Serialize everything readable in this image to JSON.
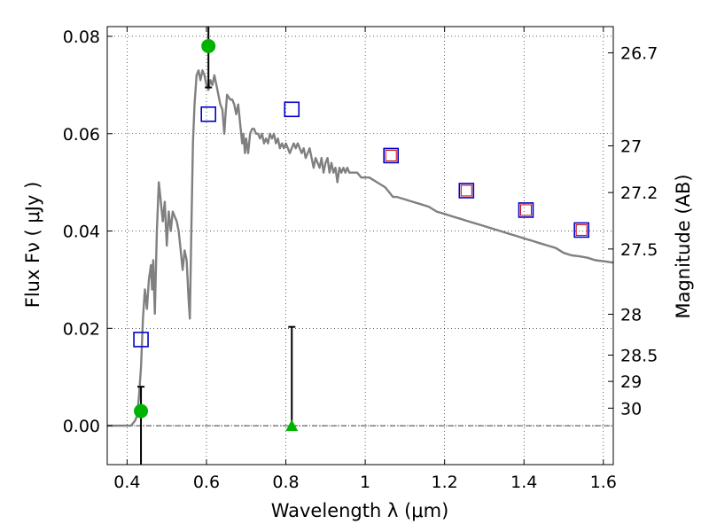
{
  "chart_data": {
    "type": "scatter",
    "xlabel": "Wavelength  λ (μm)",
    "ylabel": "Flux  Fν ( μJy )",
    "y2label": "Magnitude (AB)",
    "xlim": [
      0.35,
      1.625
    ],
    "ylim": [
      -0.008,
      0.082
    ],
    "grid": true,
    "x_ticks": [
      {
        "value": 0.4,
        "label": "0.4"
      },
      {
        "value": 0.6,
        "label": "0.6"
      },
      {
        "value": 0.8,
        "label": "0.8"
      },
      {
        "value": 1.0,
        "label": "1"
      },
      {
        "value": 1.2,
        "label": "1.2"
      },
      {
        "value": 1.4,
        "label": "1.4"
      },
      {
        "value": 1.6,
        "label": "1.6"
      }
    ],
    "y_ticks": [
      {
        "value": 0.0,
        "label": "0.00"
      },
      {
        "value": 0.02,
        "label": "0.02"
      },
      {
        "value": 0.04,
        "label": "0.04"
      },
      {
        "value": 0.06,
        "label": "0.06"
      },
      {
        "value": 0.08,
        "label": "0.08"
      }
    ],
    "mag_ticks": [
      {
        "label": "26.7",
        "flux": 0.0766
      },
      {
        "label": "27",
        "flux": 0.0575
      },
      {
        "label": "27.2",
        "flux": 0.0479
      },
      {
        "label": "27.5",
        "flux": 0.0363
      },
      {
        "label": "28",
        "flux": 0.0229
      },
      {
        "label": "28.5",
        "flux": 0.0145
      },
      {
        "label": "29",
        "flux": 0.0091
      },
      {
        "label": "30",
        "flux": 0.0036
      }
    ],
    "model_sed": {
      "color": "#808080",
      "points": [
        [
          0.35,
          0.0
        ],
        [
          0.41,
          0.0
        ],
        [
          0.415,
          0.0005
        ],
        [
          0.42,
          0.001
        ],
        [
          0.425,
          0.002
        ],
        [
          0.43,
          0.006
        ],
        [
          0.435,
          0.012
        ],
        [
          0.44,
          0.022
        ],
        [
          0.445,
          0.028
        ],
        [
          0.45,
          0.024
        ],
        [
          0.455,
          0.03
        ],
        [
          0.46,
          0.033
        ],
        [
          0.463,
          0.028
        ],
        [
          0.466,
          0.034
        ],
        [
          0.47,
          0.023
        ],
        [
          0.475,
          0.04
        ],
        [
          0.48,
          0.05
        ],
        [
          0.485,
          0.046
        ],
        [
          0.49,
          0.042
        ],
        [
          0.495,
          0.046
        ],
        [
          0.5,
          0.037
        ],
        [
          0.505,
          0.044
        ],
        [
          0.51,
          0.04
        ],
        [
          0.515,
          0.044
        ],
        [
          0.52,
          0.043
        ],
        [
          0.525,
          0.042
        ],
        [
          0.53,
          0.04
        ],
        [
          0.535,
          0.036
        ],
        [
          0.54,
          0.032
        ],
        [
          0.545,
          0.036
        ],
        [
          0.55,
          0.034
        ],
        [
          0.555,
          0.026
        ],
        [
          0.558,
          0.022
        ],
        [
          0.562,
          0.04
        ],
        [
          0.566,
          0.058
        ],
        [
          0.57,
          0.066
        ],
        [
          0.575,
          0.072
        ],
        [
          0.58,
          0.073
        ],
        [
          0.585,
          0.071
        ],
        [
          0.59,
          0.073
        ],
        [
          0.595,
          0.072
        ],
        [
          0.6,
          0.07
        ],
        [
          0.605,
          0.069
        ],
        [
          0.61,
          0.071
        ],
        [
          0.615,
          0.07
        ],
        [
          0.62,
          0.072
        ],
        [
          0.625,
          0.07
        ],
        [
          0.63,
          0.068
        ],
        [
          0.635,
          0.066
        ],
        [
          0.64,
          0.065
        ],
        [
          0.645,
          0.06
        ],
        [
          0.648,
          0.064
        ],
        [
          0.652,
          0.068
        ],
        [
          0.66,
          0.067
        ],
        [
          0.665,
          0.067
        ],
        [
          0.67,
          0.066
        ],
        [
          0.675,
          0.064
        ],
        [
          0.68,
          0.066
        ],
        [
          0.685,
          0.062
        ],
        [
          0.69,
          0.058
        ],
        [
          0.693,
          0.06
        ],
        [
          0.697,
          0.056
        ],
        [
          0.7,
          0.059
        ],
        [
          0.705,
          0.056
        ],
        [
          0.71,
          0.06
        ],
        [
          0.715,
          0.061
        ],
        [
          0.72,
          0.061
        ],
        [
          0.725,
          0.06
        ],
        [
          0.73,
          0.06
        ],
        [
          0.735,
          0.059
        ],
        [
          0.74,
          0.06
        ],
        [
          0.745,
          0.058
        ],
        [
          0.75,
          0.059
        ],
        [
          0.755,
          0.058
        ],
        [
          0.76,
          0.06
        ],
        [
          0.765,
          0.059
        ],
        [
          0.77,
          0.06
        ],
        [
          0.775,
          0.058
        ],
        [
          0.78,
          0.059
        ],
        [
          0.785,
          0.057
        ],
        [
          0.79,
          0.058
        ],
        [
          0.795,
          0.057
        ],
        [
          0.8,
          0.058
        ],
        [
          0.805,
          0.057
        ],
        [
          0.81,
          0.056
        ],
        [
          0.815,
          0.057
        ],
        [
          0.82,
          0.058
        ],
        [
          0.825,
          0.057
        ],
        [
          0.83,
          0.058
        ],
        [
          0.835,
          0.057
        ],
        [
          0.84,
          0.056
        ],
        [
          0.845,
          0.057
        ],
        [
          0.85,
          0.055
        ],
        [
          0.855,
          0.056
        ],
        [
          0.86,
          0.057
        ],
        [
          0.865,
          0.055
        ],
        [
          0.87,
          0.053
        ],
        [
          0.875,
          0.055
        ],
        [
          0.88,
          0.054
        ],
        [
          0.885,
          0.053
        ],
        [
          0.89,
          0.055
        ],
        [
          0.895,
          0.052
        ],
        [
          0.9,
          0.054
        ],
        [
          0.905,
          0.055
        ],
        [
          0.91,
          0.052
        ],
        [
          0.915,
          0.054
        ],
        [
          0.92,
          0.052
        ],
        [
          0.925,
          0.053
        ],
        [
          0.93,
          0.05
        ],
        [
          0.935,
          0.053
        ],
        [
          0.94,
          0.052
        ],
        [
          0.945,
          0.053
        ],
        [
          0.95,
          0.052
        ],
        [
          0.955,
          0.053
        ],
        [
          0.96,
          0.052
        ],
        [
          0.97,
          0.052
        ],
        [
          0.98,
          0.052
        ],
        [
          0.99,
          0.051
        ],
        [
          1.0,
          0.051
        ],
        [
          1.01,
          0.051
        ],
        [
          1.03,
          0.05
        ],
        [
          1.05,
          0.049
        ],
        [
          1.06,
          0.048
        ],
        [
          1.07,
          0.047
        ],
        [
          1.08,
          0.047
        ],
        [
          1.1,
          0.0465
        ],
        [
          1.12,
          0.046
        ],
        [
          1.14,
          0.0455
        ],
        [
          1.16,
          0.045
        ],
        [
          1.18,
          0.044
        ],
        [
          1.2,
          0.0435
        ],
        [
          1.22,
          0.043
        ],
        [
          1.24,
          0.0425
        ],
        [
          1.26,
          0.042
        ],
        [
          1.28,
          0.0415
        ],
        [
          1.3,
          0.041
        ],
        [
          1.32,
          0.0405
        ],
        [
          1.34,
          0.04
        ],
        [
          1.36,
          0.0395
        ],
        [
          1.38,
          0.039
        ],
        [
          1.4,
          0.0385
        ],
        [
          1.42,
          0.038
        ],
        [
          1.44,
          0.0375
        ],
        [
          1.46,
          0.037
        ],
        [
          1.48,
          0.0365
        ],
        [
          1.5,
          0.0355
        ],
        [
          1.52,
          0.035
        ],
        [
          1.54,
          0.0348
        ],
        [
          1.56,
          0.0345
        ],
        [
          1.58,
          0.034
        ],
        [
          1.6,
          0.0338
        ],
        [
          1.625,
          0.0335
        ]
      ]
    },
    "observed_detections": {
      "color": "#00b300",
      "points": [
        {
          "x": 0.435,
          "y": 0.003,
          "err_low": -0.008,
          "err_high": 0.008
        },
        {
          "x": 0.605,
          "y": 0.078,
          "err_low": 0.0695,
          "err_high": 0.082
        }
      ]
    },
    "observed_upper_limits": {
      "color": "#00b300",
      "points": [
        {
          "x": 0.815,
          "y": 0.0,
          "err_high": 0.0203
        }
      ]
    },
    "model_photometry_blue": {
      "color": "#0000cc",
      "points": [
        {
          "x": 0.435,
          "y": 0.0177
        },
        {
          "x": 0.605,
          "y": 0.064
        },
        {
          "x": 0.815,
          "y": 0.065
        },
        {
          "x": 1.065,
          "y": 0.0555
        },
        {
          "x": 1.255,
          "y": 0.0483
        },
        {
          "x": 1.405,
          "y": 0.0443
        },
        {
          "x": 1.545,
          "y": 0.0402
        }
      ]
    },
    "model_photometry_red": {
      "color": "#cc0000",
      "points": [
        {
          "x": 1.065,
          "y": 0.0555
        },
        {
          "x": 1.255,
          "y": 0.0483
        },
        {
          "x": 1.405,
          "y": 0.0443
        },
        {
          "x": 1.545,
          "y": 0.0402
        }
      ]
    }
  }
}
